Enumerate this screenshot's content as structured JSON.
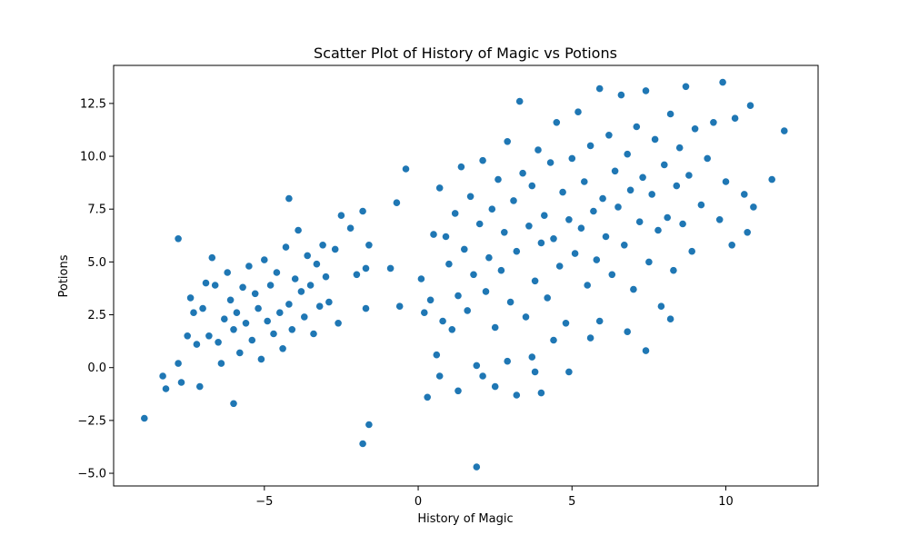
{
  "chart_data": {
    "type": "scatter",
    "title": "Scatter Plot of History of Magic vs Potions",
    "xlabel": "History of Magic",
    "ylabel": "Potions",
    "xlim": [
      -9.9,
      13.0
    ],
    "ylim": [
      -5.6,
      14.3
    ],
    "xticks": [
      -5,
      0,
      5,
      10
    ],
    "xtick_labels": [
      "−5",
      "0",
      "5",
      "10"
    ],
    "yticks": [
      -5.0,
      -2.5,
      0.0,
      2.5,
      5.0,
      7.5,
      10.0,
      12.5
    ],
    "ytick_labels": [
      "−5.0",
      "−2.5",
      "0.0",
      "2.5",
      "5.0",
      "7.5",
      "10.0",
      "12.5"
    ],
    "grid": false,
    "legend": "none",
    "marker_color": "#1f77b4",
    "marker_edge_color": "#ffffff",
    "series": [
      {
        "points": [
          [
            -8.9,
            -2.4
          ],
          [
            -8.3,
            -0.4
          ],
          [
            -8.2,
            -1.0
          ],
          [
            -7.8,
            0.2
          ],
          [
            -7.7,
            -0.7
          ],
          [
            -7.8,
            6.1
          ],
          [
            -7.5,
            1.5
          ],
          [
            -7.4,
            3.3
          ],
          [
            -7.3,
            2.6
          ],
          [
            -7.2,
            1.1
          ],
          [
            -7.1,
            -0.9
          ],
          [
            -7.0,
            2.8
          ],
          [
            -6.9,
            4.0
          ],
          [
            -6.8,
            1.5
          ],
          [
            -6.7,
            5.2
          ],
          [
            -6.6,
            3.9
          ],
          [
            -6.5,
            1.2
          ],
          [
            -6.4,
            0.2
          ],
          [
            -6.3,
            2.3
          ],
          [
            -6.2,
            4.5
          ],
          [
            -6.1,
            3.2
          ],
          [
            -6.0,
            1.8
          ],
          [
            -6.0,
            -1.7
          ],
          [
            -5.9,
            2.6
          ],
          [
            -5.8,
            0.7
          ],
          [
            -5.7,
            3.8
          ],
          [
            -5.6,
            2.1
          ],
          [
            -5.5,
            4.8
          ],
          [
            -5.4,
            1.3
          ],
          [
            -5.3,
            3.5
          ],
          [
            -5.2,
            2.8
          ],
          [
            -5.1,
            0.4
          ],
          [
            -5.0,
            5.1
          ],
          [
            -4.9,
            2.2
          ],
          [
            -4.8,
            3.9
          ],
          [
            -4.7,
            1.6
          ],
          [
            -4.6,
            4.5
          ],
          [
            -4.5,
            2.6
          ],
          [
            -4.4,
            0.9
          ],
          [
            -4.3,
            5.7
          ],
          [
            -4.2,
            3.0
          ],
          [
            -4.1,
            1.8
          ],
          [
            -4.0,
            4.2
          ],
          [
            -3.9,
            6.5
          ],
          [
            -3.8,
            3.6
          ],
          [
            -3.7,
            2.4
          ],
          [
            -3.6,
            5.3
          ],
          [
            -3.5,
            3.9
          ],
          [
            -3.4,
            1.6
          ],
          [
            -3.3,
            4.9
          ],
          [
            -3.2,
            2.9
          ],
          [
            -3.1,
            5.8
          ],
          [
            -3.0,
            4.3
          ],
          [
            -2.9,
            3.1
          ],
          [
            -2.7,
            5.6
          ],
          [
            -2.6,
            2.1
          ],
          [
            -2.5,
            7.2
          ],
          [
            -2.2,
            6.6
          ],
          [
            -2.0,
            4.4
          ],
          [
            -1.8,
            7.4
          ],
          [
            -1.6,
            5.8
          ],
          [
            -1.7,
            4.7
          ],
          [
            -1.7,
            2.8
          ],
          [
            -1.6,
            -2.7
          ],
          [
            -1.8,
            -3.6
          ],
          [
            -4.2,
            8.0
          ],
          [
            -0.9,
            4.7
          ],
          [
            -0.7,
            7.8
          ],
          [
            -0.6,
            2.9
          ],
          [
            -0.4,
            9.4
          ],
          [
            0.1,
            4.2
          ],
          [
            0.2,
            2.6
          ],
          [
            0.3,
            -1.4
          ],
          [
            0.4,
            3.2
          ],
          [
            0.5,
            6.3
          ],
          [
            0.6,
            0.6
          ],
          [
            0.7,
            8.5
          ],
          [
            0.8,
            2.2
          ],
          [
            0.9,
            6.2
          ],
          [
            1.0,
            4.9
          ],
          [
            1.1,
            1.8
          ],
          [
            1.2,
            7.3
          ],
          [
            1.3,
            3.4
          ],
          [
            1.4,
            9.5
          ],
          [
            1.5,
            5.6
          ],
          [
            1.6,
            2.7
          ],
          [
            1.7,
            8.1
          ],
          [
            1.8,
            4.4
          ],
          [
            1.9,
            0.1
          ],
          [
            1.9,
            -4.7
          ],
          [
            2.0,
            6.8
          ],
          [
            2.1,
            9.8
          ],
          [
            2.2,
            3.6
          ],
          [
            2.3,
            5.2
          ],
          [
            2.4,
            7.5
          ],
          [
            2.5,
            1.9
          ],
          [
            2.6,
            8.9
          ],
          [
            2.7,
            4.6
          ],
          [
            2.8,
            6.4
          ],
          [
            2.9,
            10.7
          ],
          [
            3.0,
            3.1
          ],
          [
            3.1,
            7.9
          ],
          [
            3.2,
            5.5
          ],
          [
            3.3,
            12.6
          ],
          [
            3.4,
            9.2
          ],
          [
            3.5,
            2.4
          ],
          [
            3.6,
            6.7
          ],
          [
            3.7,
            8.6
          ],
          [
            3.8,
            4.1
          ],
          [
            3.9,
            10.3
          ],
          [
            4.0,
            5.9
          ],
          [
            4.1,
            7.2
          ],
          [
            4.2,
            3.3
          ],
          [
            4.3,
            9.7
          ],
          [
            4.4,
            6.1
          ],
          [
            4.5,
            11.6
          ],
          [
            4.6,
            4.8
          ],
          [
            4.7,
            8.3
          ],
          [
            4.8,
            2.1
          ],
          [
            4.9,
            7.0
          ],
          [
            5.0,
            9.9
          ],
          [
            5.1,
            5.4
          ],
          [
            5.2,
            12.1
          ],
          [
            5.3,
            6.6
          ],
          [
            5.4,
            8.8
          ],
          [
            5.5,
            3.9
          ],
          [
            5.6,
            10.5
          ],
          [
            5.7,
            7.4
          ],
          [
            5.8,
            5.1
          ],
          [
            5.9,
            13.2
          ],
          [
            6.0,
            8.0
          ],
          [
            6.1,
            6.2
          ],
          [
            6.2,
            11.0
          ],
          [
            6.3,
            4.4
          ],
          [
            6.4,
            9.3
          ],
          [
            6.5,
            7.6
          ],
          [
            6.6,
            12.9
          ],
          [
            6.7,
            5.8
          ],
          [
            6.8,
            10.1
          ],
          [
            6.9,
            8.4
          ],
          [
            7.0,
            3.7
          ],
          [
            7.1,
            11.4
          ],
          [
            7.2,
            6.9
          ],
          [
            7.3,
            9.0
          ],
          [
            7.4,
            13.1
          ],
          [
            7.5,
            5.0
          ],
          [
            7.6,
            8.2
          ],
          [
            7.7,
            10.8
          ],
          [
            7.8,
            6.5
          ],
          [
            7.9,
            2.9
          ],
          [
            8.0,
            9.6
          ],
          [
            8.1,
            7.1
          ],
          [
            8.2,
            12.0
          ],
          [
            8.3,
            4.6
          ],
          [
            8.4,
            8.6
          ],
          [
            8.5,
            10.4
          ],
          [
            8.6,
            6.8
          ],
          [
            8.7,
            13.3
          ],
          [
            8.8,
            9.1
          ],
          [
            8.9,
            5.5
          ],
          [
            9.0,
            11.3
          ],
          [
            9.2,
            7.7
          ],
          [
            9.4,
            9.9
          ],
          [
            9.6,
            11.6
          ],
          [
            9.8,
            7.0
          ],
          [
            9.9,
            13.5
          ],
          [
            10.0,
            8.8
          ],
          [
            10.2,
            5.8
          ],
          [
            10.3,
            11.8
          ],
          [
            10.6,
            8.2
          ],
          [
            10.7,
            6.4
          ],
          [
            10.8,
            12.4
          ],
          [
            10.9,
            7.6
          ],
          [
            11.5,
            8.9
          ],
          [
            11.9,
            11.2
          ],
          [
            4.0,
            -1.2
          ],
          [
            3.2,
            -1.3
          ],
          [
            2.5,
            -0.9
          ],
          [
            3.8,
            -0.2
          ],
          [
            4.9,
            -0.2
          ],
          [
            1.3,
            -1.1
          ],
          [
            0.7,
            -0.4
          ],
          [
            2.1,
            -0.4
          ],
          [
            4.4,
            1.3
          ],
          [
            5.6,
            1.4
          ],
          [
            7.4,
            0.8
          ],
          [
            8.2,
            2.3
          ],
          [
            6.8,
            1.7
          ],
          [
            5.9,
            2.2
          ],
          [
            3.7,
            0.5
          ],
          [
            2.9,
            0.3
          ]
        ]
      }
    ]
  }
}
